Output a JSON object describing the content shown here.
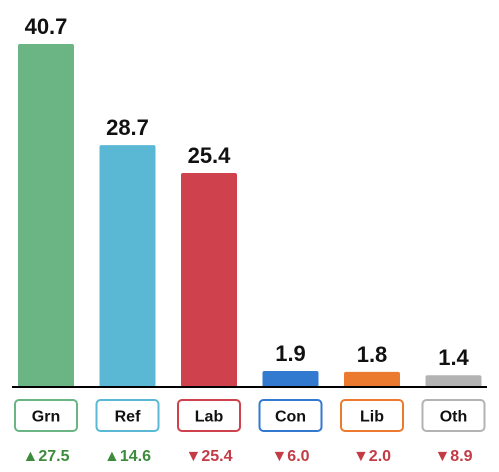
{
  "chart_data": {
    "type": "bar",
    "categories": [
      "Grn",
      "Ref",
      "Lab",
      "Con",
      "Lib",
      "Oth"
    ],
    "values": [
      40.7,
      28.7,
      25.4,
      1.9,
      1.8,
      1.4
    ],
    "value_labels": [
      "40.7",
      "28.7",
      "25.4",
      "1.9",
      "1.8",
      "1.4"
    ],
    "changes": [
      "▲27.5",
      "▲14.6",
      "▼25.4",
      "▼6.0",
      "▼2.0",
      "▼8.9"
    ],
    "change_direction": [
      "up",
      "up",
      "down",
      "down",
      "down",
      "down"
    ],
    "colors": [
      "#6ab583",
      "#5bb8d4",
      "#cf424d",
      "#3279d0",
      "#ec7a2e",
      "#b3b3b3"
    ],
    "up_color": "#3d8b3d",
    "down_color": "#c23b45",
    "baseline_color": "#000000",
    "ylim": [
      0,
      40.7
    ],
    "grid": false,
    "legend": "none",
    "title": "",
    "xlabel": "",
    "ylabel": ""
  }
}
